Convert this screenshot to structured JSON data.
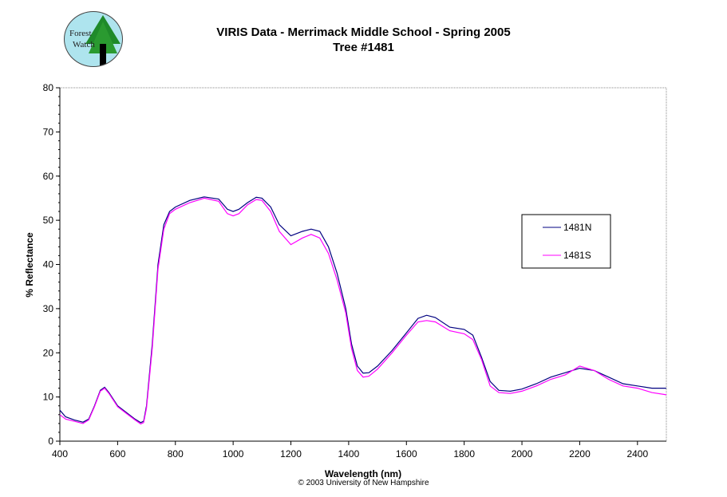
{
  "logo": {
    "text": "Forest Watch"
  },
  "chart_data": {
    "type": "line",
    "title": "VIRIS Data - Merrimack Middle School - Spring 2005",
    "subtitle": "Tree #1481",
    "xlabel": "Wavelength (nm)",
    "ylabel": "% Reflectance",
    "xlim": [
      400,
      2500
    ],
    "ylim": [
      0,
      80
    ],
    "xticks": [
      400,
      600,
      800,
      1000,
      1200,
      1400,
      1600,
      1800,
      2000,
      2200,
      2400
    ],
    "yticks": [
      0,
      10,
      20,
      30,
      40,
      50,
      60,
      70,
      80
    ],
    "grid": false,
    "legend": "right",
    "series": [
      {
        "name": "1481N",
        "color": "#000080",
        "x": [
          400,
          420,
          450,
          480,
          500,
          520,
          540,
          555,
          570,
          600,
          630,
          660,
          680,
          690,
          700,
          720,
          740,
          760,
          780,
          800,
          850,
          900,
          950,
          980,
          1000,
          1020,
          1050,
          1080,
          1100,
          1130,
          1160,
          1200,
          1240,
          1270,
          1300,
          1330,
          1360,
          1390,
          1410,
          1430,
          1450,
          1470,
          1500,
          1550,
          1600,
          1640,
          1670,
          1700,
          1750,
          1800,
          1830,
          1860,
          1890,
          1920,
          1960,
          2000,
          2050,
          2100,
          2150,
          2200,
          2250,
          2300,
          2350,
          2400,
          2450,
          2500
        ],
        "y": [
          7,
          5.5,
          4.8,
          4.3,
          5,
          8,
          11.5,
          12.2,
          11,
          8,
          6.5,
          5,
          4.2,
          4.5,
          8,
          22,
          40,
          49,
          52,
          53,
          54.5,
          55.3,
          54.8,
          52.5,
          52,
          52.5,
          54,
          55.2,
          55,
          53,
          49,
          46.5,
          47.5,
          48,
          47.5,
          44,
          38,
          30,
          22,
          17,
          15.4,
          15.5,
          17,
          20.5,
          24.5,
          27.8,
          28.5,
          28,
          25.8,
          25.3,
          24,
          19,
          13.5,
          11.5,
          11.3,
          11.8,
          13,
          14.5,
          15.5,
          16.5,
          16,
          14.5,
          13,
          12.5,
          12,
          12
        ]
      },
      {
        "name": "1481S",
        "color": "#ff00ff",
        "x": [
          400,
          420,
          450,
          480,
          500,
          520,
          540,
          555,
          570,
          600,
          630,
          660,
          680,
          690,
          700,
          720,
          740,
          760,
          780,
          800,
          850,
          900,
          950,
          980,
          1000,
          1020,
          1050,
          1080,
          1100,
          1130,
          1160,
          1200,
          1240,
          1270,
          1300,
          1330,
          1360,
          1390,
          1410,
          1430,
          1450,
          1470,
          1500,
          1550,
          1600,
          1640,
          1670,
          1700,
          1750,
          1800,
          1830,
          1860,
          1890,
          1920,
          1960,
          2000,
          2050,
          2100,
          2150,
          2200,
          2250,
          2300,
          2350,
          2400,
          2450,
          2500
        ],
        "y": [
          6,
          5,
          4.5,
          4,
          4.8,
          7.8,
          11.3,
          12,
          10.8,
          7.8,
          6.3,
          4.8,
          3.9,
          4.2,
          7.5,
          21,
          39,
          48,
          51.5,
          52.5,
          54,
          55,
          54.3,
          51.5,
          51,
          51.5,
          53.5,
          54.7,
          54.5,
          52,
          47.5,
          44.5,
          46,
          46.8,
          46,
          42.5,
          36.5,
          29,
          21,
          16,
          14.5,
          14.7,
          16.3,
          20,
          24,
          27,
          27.3,
          27,
          25,
          24.3,
          23,
          18.5,
          12.5,
          11,
          10.8,
          11.3,
          12.5,
          14,
          15,
          17,
          16,
          14,
          12.5,
          12,
          11,
          10.5
        ]
      }
    ]
  },
  "copyright": "© 2003 University of New Hampshire"
}
